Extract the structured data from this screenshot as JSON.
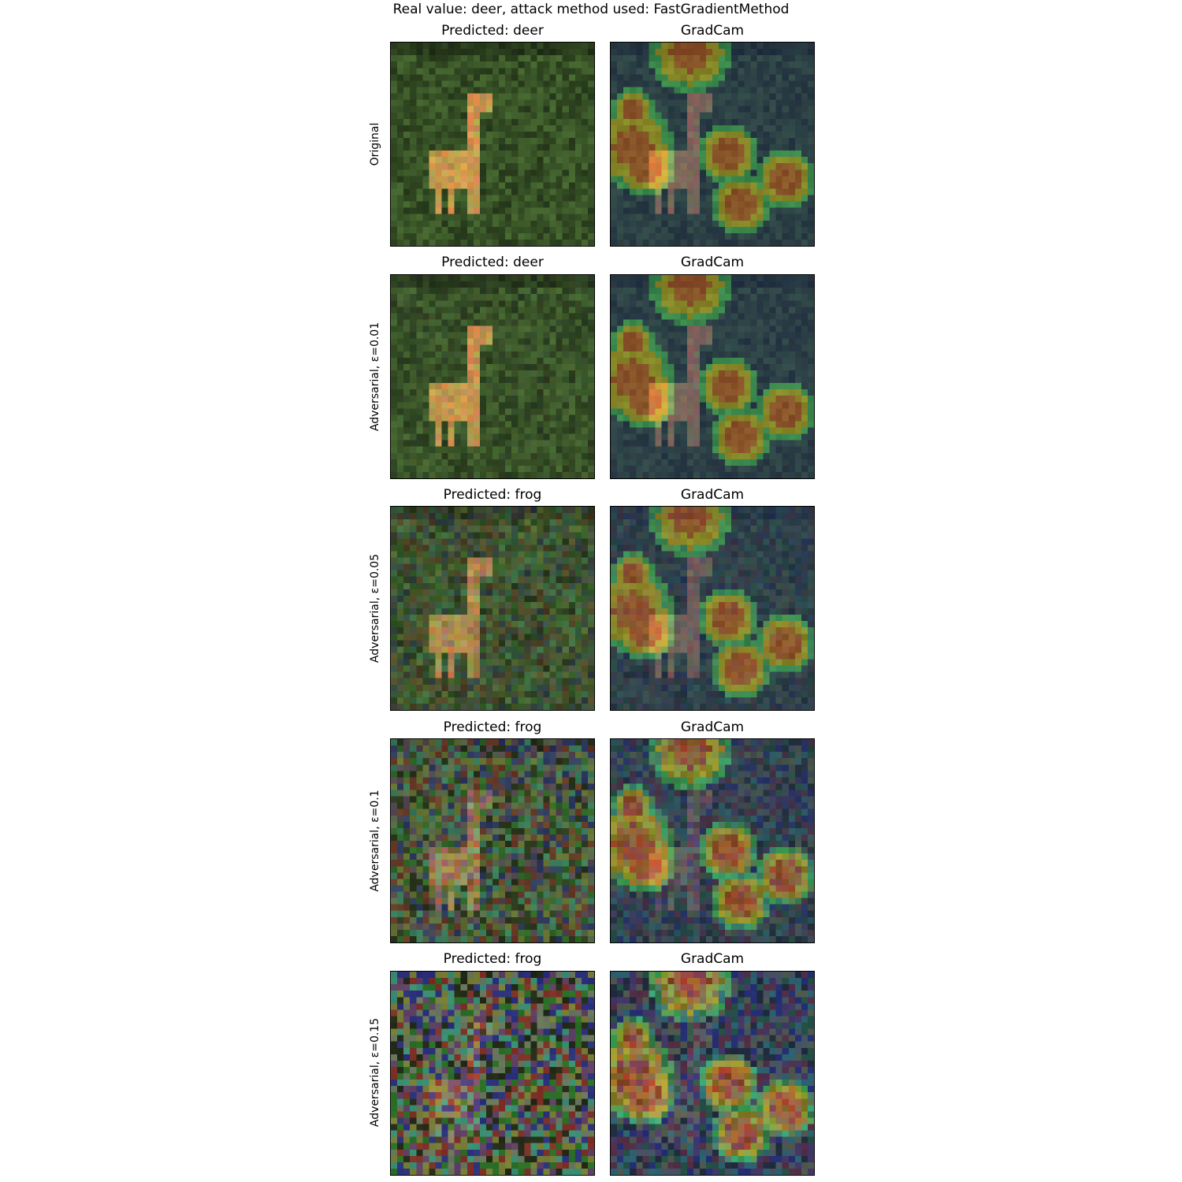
{
  "figure": {
    "suptitle": "Real value: deer, attack method used: FastGradientMethod",
    "rows": [
      {
        "ylabel": "Original",
        "predicted_title": "Predicted: deer",
        "gradcam_title": "GradCam",
        "noise_level": 0.0
      },
      {
        "ylabel": "Adversarial, ε=0.01",
        "predicted_title": "Predicted: deer",
        "gradcam_title": "GradCam",
        "noise_level": 0.01
      },
      {
        "ylabel": "Adversarial, ε=0.05",
        "predicted_title": "Predicted: frog",
        "gradcam_title": "GradCam",
        "noise_level": 0.05
      },
      {
        "ylabel": "Adversarial, ε=0.1",
        "predicted_title": "Predicted: frog",
        "gradcam_title": "GradCam",
        "noise_level": 0.1
      },
      {
        "ylabel": "Adversarial, ε=0.15",
        "predicted_title": "Predicted: frog",
        "gradcam_title": "GradCam",
        "noise_level": 0.15
      }
    ],
    "colors": {
      "background_green": "#3d5a2a",
      "deer_tan": "#c89a4e",
      "gradcam_blue": "#1c2a6a",
      "gradcam_hot": "#e8552a"
    }
  }
}
